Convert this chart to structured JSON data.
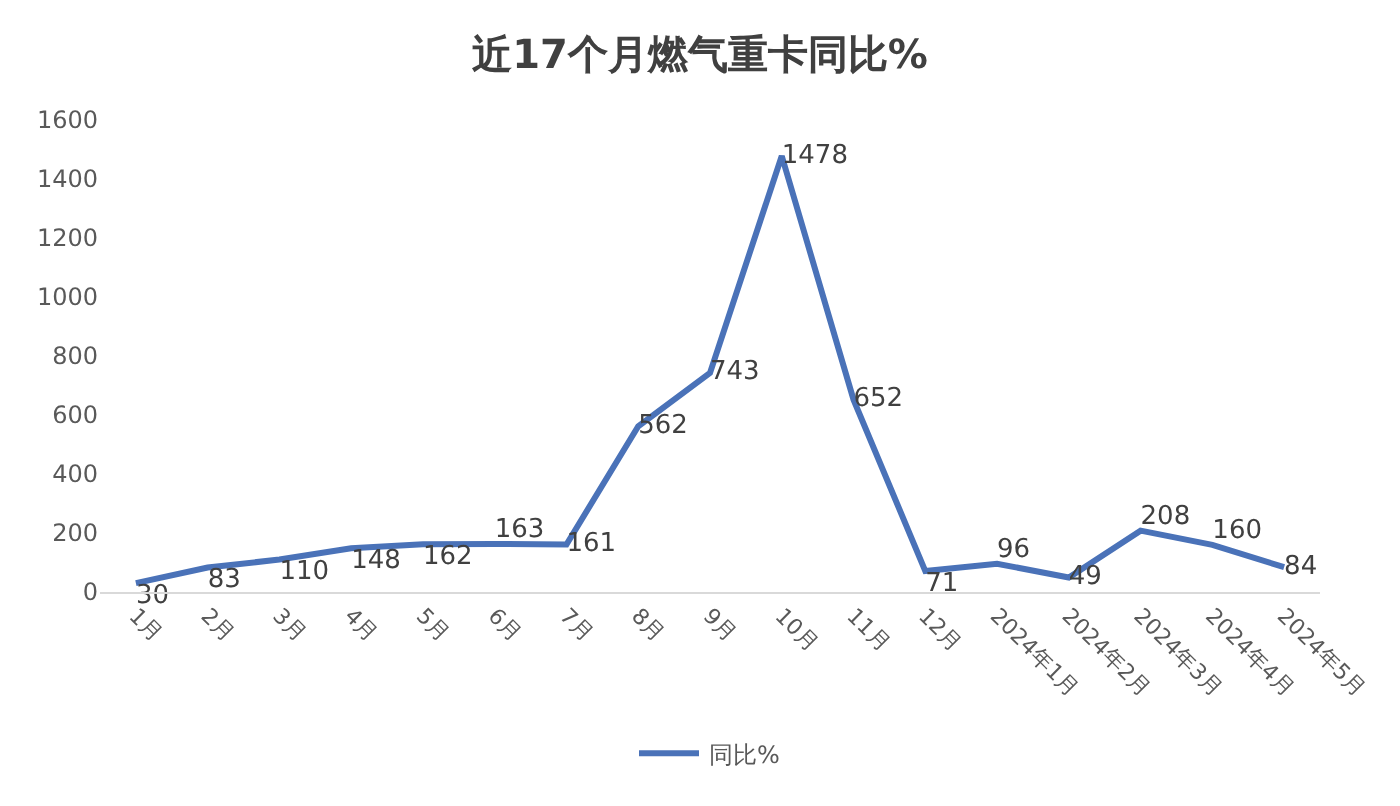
{
  "chart_data": {
    "type": "line",
    "title": "近17个月燃气重卡同比%",
    "categories": [
      "1月",
      "2月",
      "3月",
      "4月",
      "5月",
      "6月",
      "7月",
      "8月",
      "9月",
      "10月",
      "11月",
      "12月",
      "2024年1月",
      "2024年2月",
      "2024年3月",
      "2024年4月",
      "2024年5月"
    ],
    "series": [
      {
        "name": "同比%",
        "color": "#4a72b8",
        "values": [
          30,
          83,
          110,
          148,
          162,
          163,
          161,
          562,
          743,
          1478,
          652,
          71,
          96,
          49,
          208,
          160,
          84
        ]
      }
    ],
    "ylim": [
      0,
      1600
    ],
    "yticks": [
      0,
      200,
      400,
      600,
      800,
      1000,
      1200,
      1400,
      1600
    ],
    "data_labels": true,
    "grid": false,
    "legend": "bottom",
    "marker": "none",
    "line_style": "solid"
  }
}
